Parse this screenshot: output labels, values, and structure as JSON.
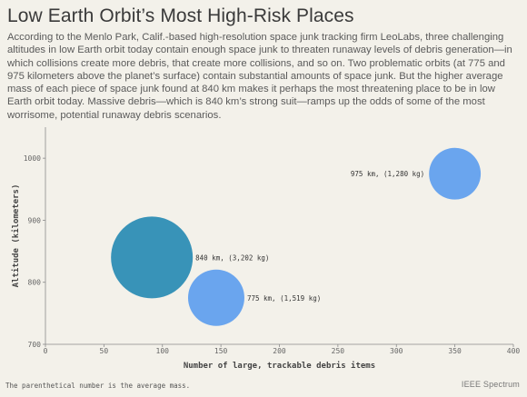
{
  "header": {
    "title": "Low Earth Orbit’s Most High-Risk Places",
    "subtitle": "According to the Menlo Park, Calif.-based high-resolution space junk tracking firm LeoLabs, three challenging altitudes in low Earth orbit today contain enough space junk to threaten runaway levels of debris generation—in which collisions create more debris, that create more collisions, and so on. Two problematic orbits (at 775 and 975 kilometers above the planet’s surface) contain substantial amounts of space junk. But the higher average mass of each piece of space junk found at 840 km makes it perhaps the most threatening place to be in low Earth orbit today. Massive debris—which is 840 km’s strong suit—ramps up the odds of some of the most worrisome, potential runaway debris scenarios."
  },
  "footer": {
    "note": "The parenthetical number is the average mass.",
    "brand": "IEEE Spectrum"
  },
  "chart_data": {
    "type": "scatter",
    "subtype": "bubble",
    "xlabel": "Number of large, trackable debris items",
    "ylabel": "Altitude (kilometers)",
    "xlim": [
      0,
      400
    ],
    "ylim": [
      700,
      1050
    ],
    "xticks": [
      0,
      50,
      100,
      150,
      200,
      250,
      300,
      350,
      400
    ],
    "yticks": [
      700,
      800,
      900,
      1000
    ],
    "grid": false,
    "points": [
      {
        "x": 350,
        "y": 975,
        "mass_kg": 1280,
        "label": "975 km, (1,280 kg)",
        "color": "#6aa5ee",
        "label_side": "left"
      },
      {
        "x": 91,
        "y": 840,
        "mass_kg": 3202,
        "label": "840 km, (3,202 kg)",
        "color": "#3893b8",
        "label_side": "right"
      },
      {
        "x": 146,
        "y": 775,
        "mass_kg": 1519,
        "label": "775 km, (1,519 kg)",
        "color": "#6aa5ee",
        "label_side": "right"
      }
    ]
  }
}
